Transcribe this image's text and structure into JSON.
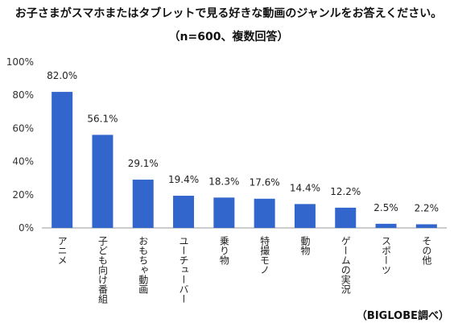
{
  "chart_data": {
    "type": "bar",
    "title": "お子さまがスマホまたはタブレットで見る好きな動画のジャンルをお答えください。",
    "subtitle": "（n=600、複数回答）",
    "categories": [
      "アニメ",
      "子ども向け番組",
      "おもちゃ動画",
      "ユーチューバー",
      "乗り物",
      "特撮モノ",
      "動物",
      "ゲームの実況",
      "スポーツ",
      "その他"
    ],
    "values": [
      82.0,
      56.1,
      29.1,
      19.4,
      18.3,
      17.6,
      14.4,
      12.2,
      2.5,
      2.2
    ],
    "data_labels": [
      "82.0%",
      "56.1%",
      "29.1%",
      "19.4%",
      "18.3%",
      "17.6%",
      "14.4%",
      "12.2%",
      "2.5%",
      "2.2%"
    ],
    "ylim": [
      0,
      100
    ],
    "yticks": [
      "0%",
      "20%",
      "40%",
      "60%",
      "80%",
      "100%"
    ],
    "bar_color": "#3366cc",
    "source": "（BIGLOBE調べ）"
  }
}
